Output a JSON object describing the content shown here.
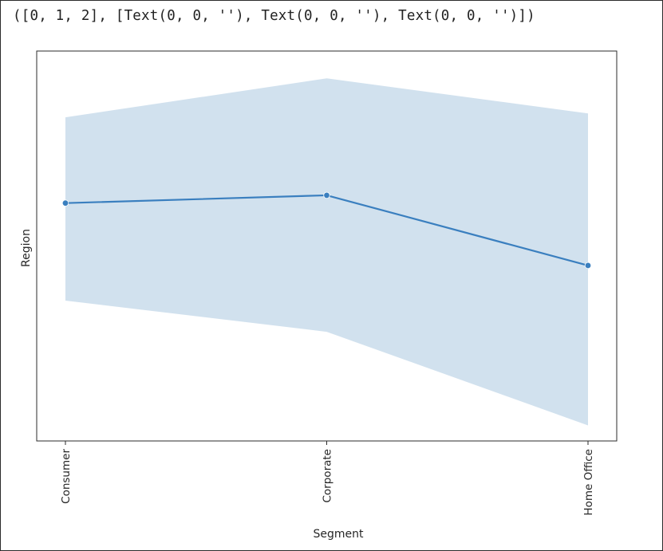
{
  "output": {
    "text": "([0, 1, 2], [Text(0, 0, ''), Text(0, 0, ''), Text(0, 0, '')])"
  },
  "colors": {
    "line": "#3a7fbf",
    "band": "#c5d9ea",
    "frame": "#2b2b2b"
  },
  "chart_data": {
    "type": "line",
    "categories": [
      "Consumer",
      "Corporate",
      "Home Office"
    ],
    "series": [
      {
        "values": [
          0.61,
          0.63,
          0.45
        ],
        "ci_low": [
          0.36,
          0.28,
          0.04
        ],
        "ci_high": [
          0.83,
          0.93,
          0.84
        ]
      }
    ],
    "xlabel": "Segment",
    "ylabel": "Region",
    "ylim": [
      0,
      1
    ],
    "y_ticks_visible": false,
    "x_tick_rotation": "vertical",
    "grid": false,
    "legend": "none",
    "markers": true
  }
}
